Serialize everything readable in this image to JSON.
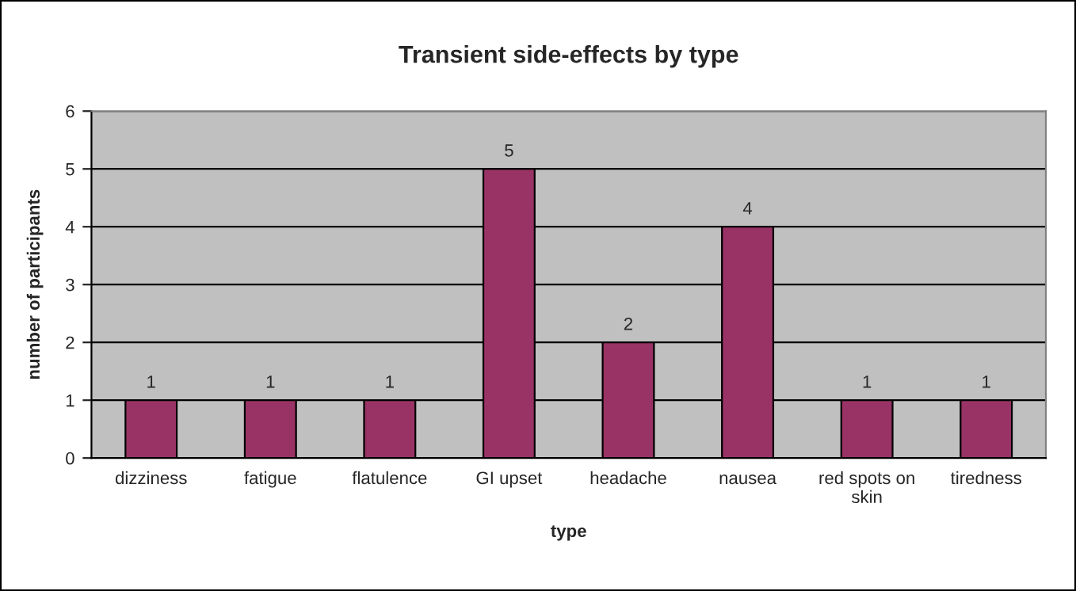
{
  "chart_data": {
    "type": "bar",
    "title": "Transient side-effects by type",
    "xlabel": "type",
    "ylabel": "number of participants",
    "categories": [
      "dizziness",
      "fatigue",
      "flatulence",
      "GI upset",
      "headache",
      "nausea",
      "red spots on skin",
      "tiredness"
    ],
    "values": [
      1,
      1,
      1,
      5,
      2,
      4,
      1,
      1
    ],
    "color": "#993366",
    "ylim": [
      0,
      6
    ],
    "yticks": [
      0,
      1,
      2,
      3,
      4,
      5,
      6
    ],
    "grid": "y",
    "data_labels": true
  }
}
